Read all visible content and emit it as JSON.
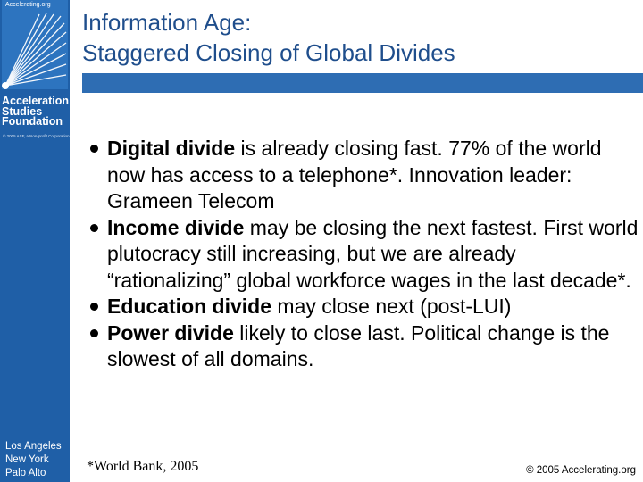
{
  "sidebar": {
    "logo_url_text": "Accelerating.org",
    "org_name_lines": [
      "Acceleration",
      "Studies",
      "Foundation"
    ],
    "copyright_small": "© 2005 ASF, a Non-profit Corporation",
    "cities": [
      "Los Angeles",
      "New York",
      "Palo Alto"
    ]
  },
  "slide": {
    "title_lines": [
      "Information Age:",
      "Staggered Closing of Global Divides"
    ],
    "bullets": [
      {
        "bold": "Digital divide",
        "text": " is already closing fast. 77% of the world now has access to a telephone*. Innovation leader: Grameen Telecom"
      },
      {
        "bold": "Income divide",
        "text": " may be closing the next fastest. First world plutocracy still increasing, but we are already “rationalizing” global workforce wages in the last decade*."
      },
      {
        "bold": "Education divide",
        "text": " may close next (post-LUI)"
      },
      {
        "bold": "Power divide",
        "text": " likely to close last. Political change is the slowest of all domains."
      }
    ],
    "footnote": "*World Bank, 2005",
    "footer_copyright": "© 2005 Accelerating.org"
  },
  "colors": {
    "sidebar": "#1f5fa7",
    "title": "#1f4e8c",
    "title_rule": "#2e6db3"
  }
}
